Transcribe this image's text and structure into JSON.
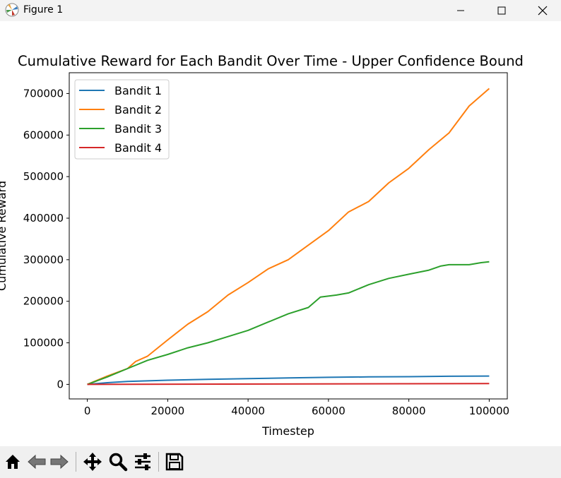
{
  "window": {
    "title": "Figure 1",
    "icon": "matplotlib-icon",
    "controls": [
      "minimize-icon",
      "maximize-icon",
      "close-icon"
    ]
  },
  "toolbar": {
    "buttons": [
      "home-icon",
      "back-icon",
      "forward-icon",
      "pan-icon",
      "zoom-icon",
      "configure-subplots-icon",
      "save-icon"
    ]
  },
  "chart_data": {
    "type": "line",
    "title": "Cumulative Reward for Each Bandit Over Time - Upper Confidence Bound",
    "xlabel": "Timestep",
    "ylabel": "Cumulative Reward",
    "xlim": [
      -4500,
      104500
    ],
    "ylim": [
      -35000,
      750000
    ],
    "xticks": [
      0,
      20000,
      40000,
      60000,
      80000,
      100000
    ],
    "yticks": [
      0,
      100000,
      200000,
      300000,
      400000,
      500000,
      600000,
      700000
    ],
    "grid": false,
    "legend_position": "upper-left",
    "series": [
      {
        "name": "Bandit 1",
        "color": "#1f77b4",
        "x": [
          0,
          5000,
          10000,
          20000,
          30000,
          40000,
          50000,
          60000,
          70000,
          80000,
          90000,
          100000
        ],
        "y": [
          0,
          4000,
          7000,
          10000,
          12000,
          14000,
          15500,
          17000,
          18000,
          18500,
          19500,
          20000
        ]
      },
      {
        "name": "Bandit 2",
        "color": "#ff7f0e",
        "x": [
          0,
          5000,
          10000,
          12000,
          15000,
          20000,
          25000,
          30000,
          35000,
          40000,
          45000,
          50000,
          55000,
          60000,
          65000,
          70000,
          75000,
          80000,
          85000,
          90000,
          95000,
          100000
        ],
        "y": [
          0,
          20000,
          38000,
          55000,
          68000,
          107000,
          145000,
          175000,
          215000,
          245000,
          278000,
          300000,
          335000,
          370000,
          415000,
          440000,
          485000,
          520000,
          565000,
          605000,
          670000,
          712000
        ]
      },
      {
        "name": "Bandit 3",
        "color": "#2ca02c",
        "x": [
          0,
          5000,
          10000,
          15000,
          20000,
          25000,
          30000,
          35000,
          40000,
          45000,
          50000,
          55000,
          58000,
          62000,
          65000,
          70000,
          75000,
          80000,
          85000,
          88000,
          90000,
          95000,
          98000,
          100000
        ],
        "y": [
          0,
          18000,
          38000,
          58000,
          72000,
          88000,
          100000,
          115000,
          130000,
          150000,
          170000,
          185000,
          210000,
          215000,
          220000,
          240000,
          255000,
          265000,
          275000,
          285000,
          288000,
          288000,
          293000,
          295000
        ]
      },
      {
        "name": "Bandit 4",
        "color": "#d62728",
        "x": [
          0,
          100000
        ],
        "y": [
          0,
          2000
        ]
      }
    ]
  }
}
